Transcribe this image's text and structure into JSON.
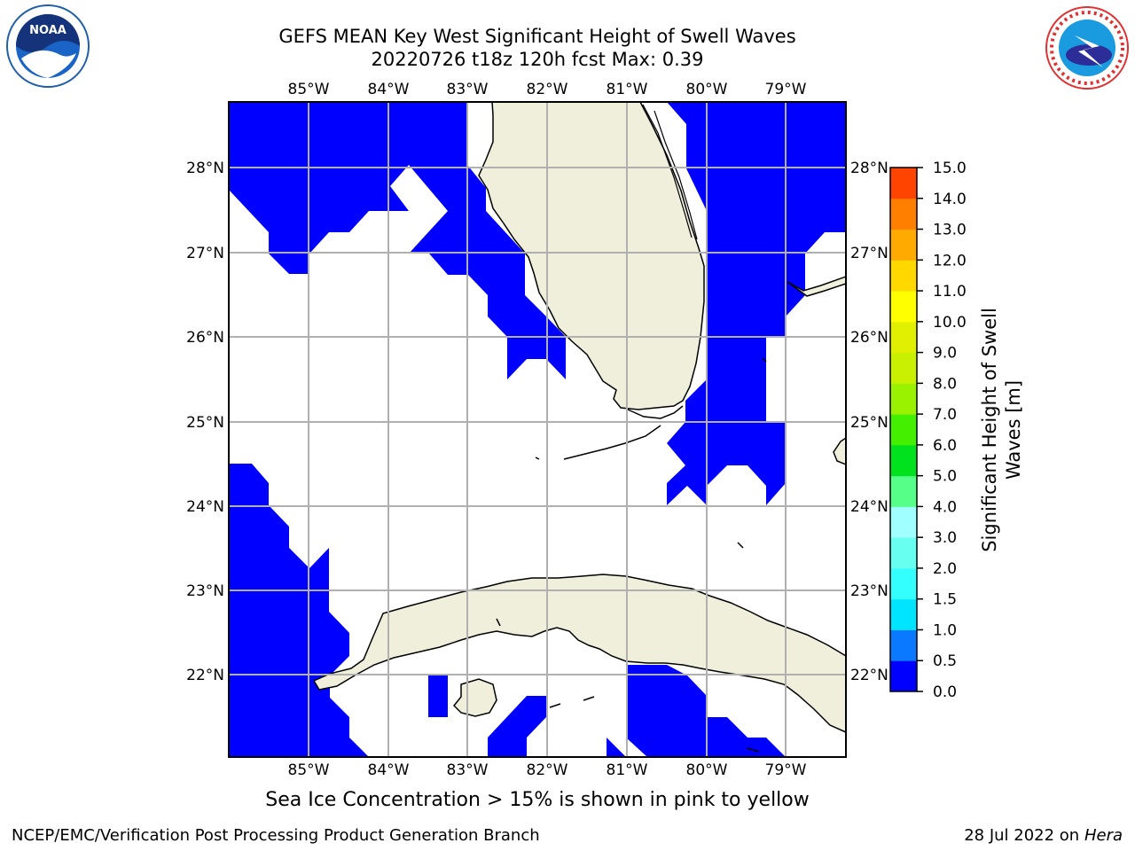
{
  "title": {
    "line1": "GEFS MEAN Key West Significant Height of Swell Waves",
    "line2": "20220726 t18z 120h fcst   Max: 0.39"
  },
  "logos": {
    "left": {
      "icon": "noaa-logo",
      "text": "NOAA"
    },
    "right": {
      "icon": "national-weather-service-logo",
      "text": "NATIONAL WEATHER SERVICE"
    }
  },
  "map": {
    "lon_ticks": [
      "85°W",
      "84°W",
      "83°W",
      "82°W",
      "81°W",
      "80°W",
      "79°W"
    ],
    "lat_ticks": [
      "28°N",
      "27°N",
      "26°N",
      "25°N",
      "24°N",
      "23°N",
      "22°N"
    ],
    "land_color": "#efefdc",
    "water_color": "#ffffff",
    "swell_color": "#0000ff",
    "grid_color": "#b0b0b0"
  },
  "colorbar": {
    "label": "Significant Height of Swell Waves [m]",
    "label_line1": "Significant Height of Swell",
    "label_line2": "Waves [m]",
    "ticks": [
      "0.0",
      "0.5",
      "1.0",
      "1.5",
      "2.0",
      "3.0",
      "4.0",
      "5.0",
      "6.0",
      "7.0",
      "8.0",
      "9.0",
      "10.0",
      "11.0",
      "12.0",
      "13.0",
      "14.0",
      "15.0"
    ],
    "colors": [
      "#0000ff",
      "#0a78ff",
      "#00e5ff",
      "#33ffff",
      "#66fff0",
      "#a0ffff",
      "#55ff88",
      "#00e21e",
      "#44f000",
      "#9af200",
      "#c8f000",
      "#e0f000",
      "#ffff00",
      "#ffd800",
      "#ffaa00",
      "#ff7f00",
      "#ff4400",
      "#ff1a00",
      "#ff0000"
    ]
  },
  "caption": "Sea Ice Concentration > 15% is shown in pink to yellow",
  "footer": {
    "left": "NCEP/EMC/Verification Post Processing Product Generation Branch",
    "right_prefix": "28 Jul 2022 on ",
    "right_host": "Hera"
  }
}
